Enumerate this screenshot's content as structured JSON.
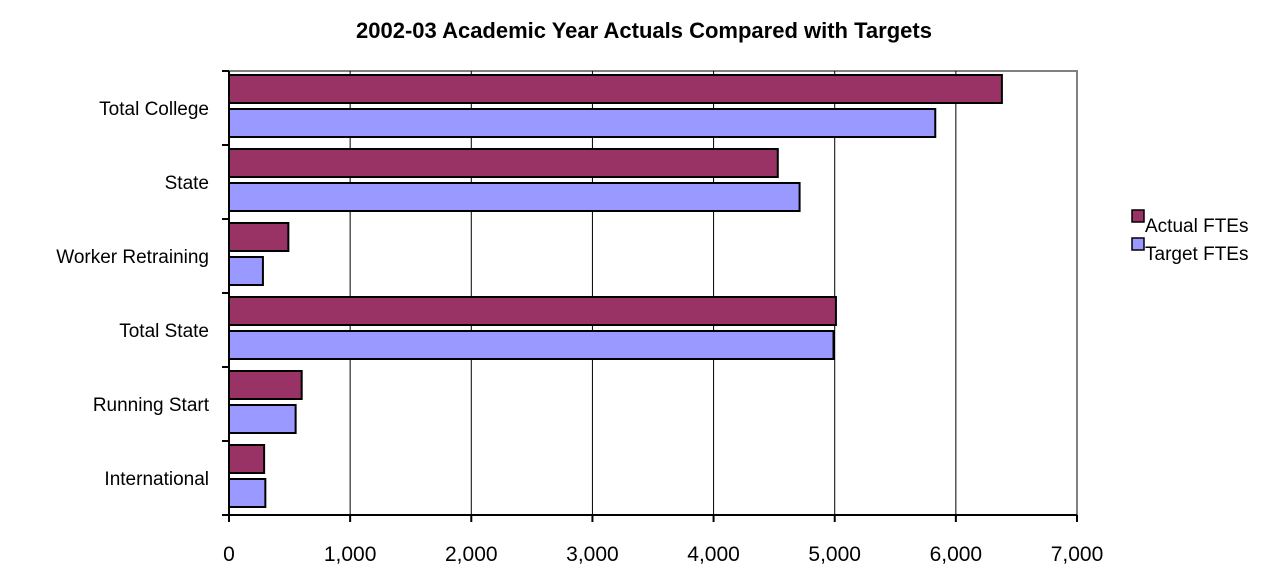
{
  "chart_data": {
    "type": "bar",
    "orientation": "horizontal",
    "title": "2002-03 Academic Year Actuals Compared with Targets",
    "xlabel": "",
    "ylabel": "",
    "categories": [
      "Total College",
      "State",
      "Worker Retraining",
      "Total State",
      "Running Start",
      "International"
    ],
    "series": [
      {
        "name": "Actual FTEs",
        "color": "#993366",
        "values": [
          6380,
          4530,
          490,
          5010,
          600,
          290
        ]
      },
      {
        "name": "Target FTEs",
        "color": "#9999ff",
        "values": [
          5830,
          4710,
          280,
          4990,
          550,
          300
        ]
      }
    ],
    "xlim": [
      0,
      7000
    ],
    "xticks": [
      0,
      1000,
      2000,
      3000,
      4000,
      5000,
      6000,
      7000
    ],
    "xtick_labels": [
      "0",
      "1,000",
      "2,000",
      "3,000",
      "4,000",
      "5,000",
      "6,000",
      "7,000"
    ],
    "grid": "vertical",
    "legend": "right"
  }
}
